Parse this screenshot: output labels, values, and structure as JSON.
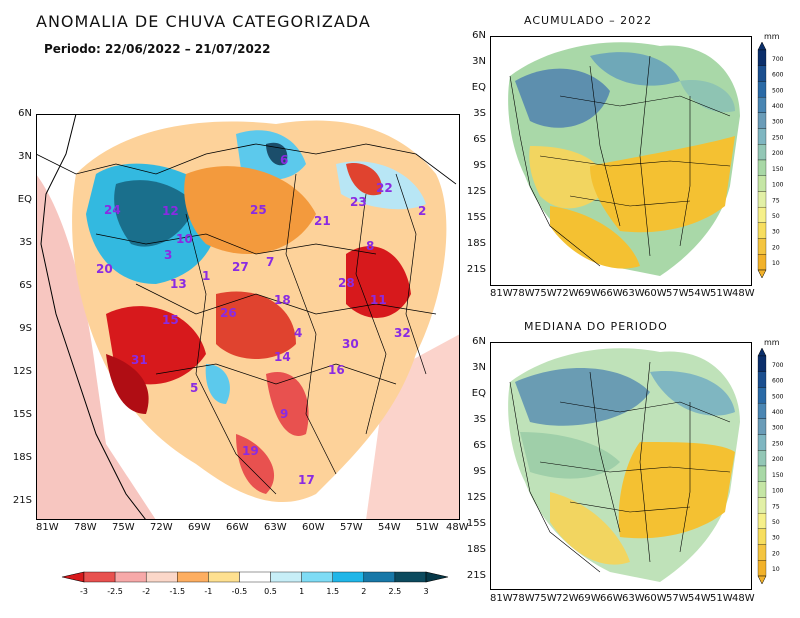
{
  "title": "ANOMALIA DE CHUVA CATEGORIZADA",
  "period": "Periodo: 22/06/2022 – 21/07/2022",
  "main_map": {
    "lat_ticks": [
      "6N",
      "3N",
      "EQ",
      "3S",
      "6S",
      "9S",
      "12S",
      "15S",
      "18S",
      "21S"
    ],
    "lon_ticks": [
      "81W",
      "78W",
      "75W",
      "72W",
      "69W",
      "66W",
      "63W",
      "60W",
      "57W",
      "54W",
      "51W",
      "48W"
    ],
    "basin_labels": [
      "6",
      "24",
      "12",
      "25",
      "21",
      "23",
      "22",
      "2",
      "10",
      "3",
      "8",
      "20",
      "13",
      "1",
      "27",
      "7",
      "18",
      "28",
      "11",
      "15",
      "26",
      "4",
      "32",
      "30",
      "31",
      "14",
      "16",
      "5",
      "9",
      "19",
      "17"
    ],
    "colorbar": {
      "labels": [
        "-3",
        "-2.5",
        "-2",
        "-1.5",
        "-1",
        "-0.5",
        "0.5",
        "1",
        "1.5",
        "2",
        "2.5",
        "3"
      ],
      "colors": [
        "#d7191c",
        "#e8514f",
        "#f7a9a9",
        "#fbd7c9",
        "#fdae61",
        "#fee090",
        "#ffffff",
        "#c7eef7",
        "#7fdcf5",
        "#20b6e8",
        "#1878a8",
        "#0c4a5e",
        "#063848"
      ]
    }
  },
  "acumulado": {
    "title": "ACUMULADO – 2022",
    "unit": "mm",
    "lat_ticks": [
      "6N",
      "3N",
      "EQ",
      "3S",
      "6S",
      "9S",
      "12S",
      "15S",
      "18S",
      "21S"
    ],
    "lon_ticks": [
      "81W",
      "78W",
      "75W",
      "72W",
      "69W",
      "66W",
      "63W",
      "60W",
      "57W",
      "54W",
      "51W",
      "48W"
    ],
    "colorbar_labels": [
      "700",
      "600",
      "500",
      "400",
      "300",
      "250",
      "200",
      "150",
      "100",
      "75",
      "50",
      "30",
      "20",
      "10"
    ]
  },
  "mediana": {
    "title": "MEDIANA DO PERIODO",
    "unit": "mm",
    "lat_ticks": [
      "6N",
      "3N",
      "EQ",
      "3S",
      "6S",
      "9S",
      "12S",
      "15S",
      "18S",
      "21S"
    ],
    "lon_ticks": [
      "81W",
      "78W",
      "75W",
      "72W",
      "69W",
      "66W",
      "63W",
      "60W",
      "57W",
      "54W",
      "51W",
      "48W"
    ],
    "colorbar_labels": [
      "700",
      "600",
      "500",
      "400",
      "300",
      "250",
      "200",
      "150",
      "100",
      "75",
      "50",
      "30",
      "20",
      "10"
    ]
  }
}
